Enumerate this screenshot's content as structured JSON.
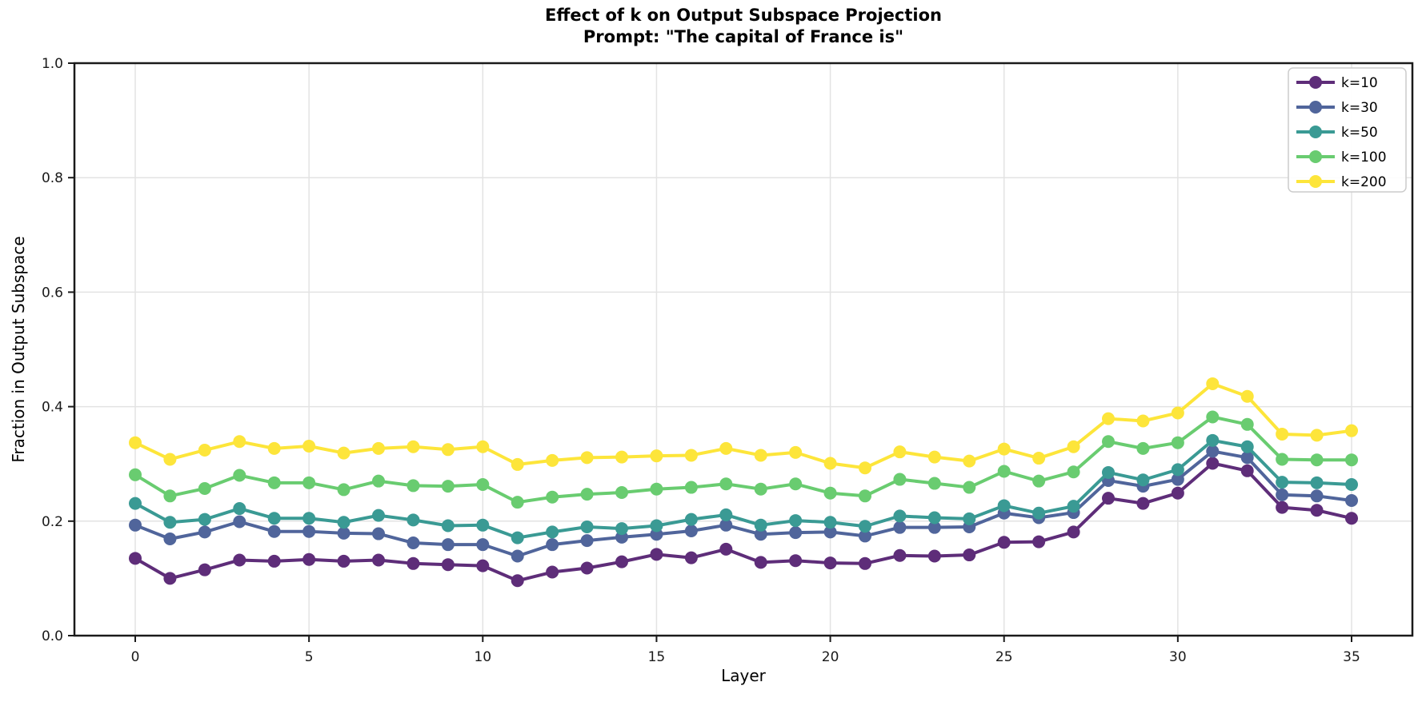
{
  "chart_data": {
    "type": "line",
    "title_line1": "Effect of k on Output Subspace Projection",
    "title_line2": "Prompt: \"The capital of France is\"",
    "xlabel": "Layer",
    "ylabel": "Fraction in Output Subspace",
    "xlim": [
      -1.75,
      36.75
    ],
    "ylim": [
      0.0,
      1.0
    ],
    "grid": true,
    "legend_position": "upper right",
    "xticks": [
      0,
      5,
      10,
      15,
      20,
      25,
      30,
      35
    ],
    "xtick_labels": [
      "0",
      "5",
      "10",
      "15",
      "20",
      "25",
      "30",
      "35"
    ],
    "yticks": [
      0.0,
      0.2,
      0.4,
      0.6,
      0.8,
      1.0
    ],
    "ytick_labels": [
      "0.0",
      "0.2",
      "0.4",
      "0.6",
      "0.8",
      "1.0"
    ],
    "x": [
      0,
      1,
      2,
      3,
      4,
      5,
      6,
      7,
      8,
      9,
      10,
      11,
      12,
      13,
      14,
      15,
      16,
      17,
      18,
      19,
      20,
      21,
      22,
      23,
      24,
      25,
      26,
      27,
      28,
      29,
      30,
      31,
      32,
      33,
      34,
      35
    ],
    "series": [
      {
        "name": "k=10",
        "color": "#5e2d79",
        "values": [
          0.135,
          0.1,
          0.115,
          0.132,
          0.13,
          0.133,
          0.13,
          0.132,
          0.126,
          0.124,
          0.122,
          0.096,
          0.111,
          0.118,
          0.129,
          0.142,
          0.136,
          0.151,
          0.128,
          0.131,
          0.127,
          0.126,
          0.14,
          0.139,
          0.141,
          0.163,
          0.164,
          0.181,
          0.24,
          0.231,
          0.249,
          0.301,
          0.288,
          0.224,
          0.219,
          0.205
        ]
      },
      {
        "name": "k=30",
        "color": "#50659b",
        "values": [
          0.193,
          0.169,
          0.181,
          0.199,
          0.182,
          0.182,
          0.179,
          0.178,
          0.162,
          0.159,
          0.159,
          0.139,
          0.159,
          0.166,
          0.172,
          0.177,
          0.183,
          0.193,
          0.177,
          0.18,
          0.181,
          0.174,
          0.189,
          0.189,
          0.19,
          0.214,
          0.206,
          0.215,
          0.271,
          0.261,
          0.273,
          0.322,
          0.311,
          0.246,
          0.244,
          0.236
        ]
      },
      {
        "name": "k=50",
        "color": "#3a9a94",
        "values": [
          0.231,
          0.198,
          0.203,
          0.222,
          0.205,
          0.205,
          0.198,
          0.21,
          0.202,
          0.192,
          0.193,
          0.171,
          0.181,
          0.19,
          0.187,
          0.192,
          0.203,
          0.211,
          0.193,
          0.201,
          0.198,
          0.191,
          0.209,
          0.206,
          0.204,
          0.227,
          0.214,
          0.226,
          0.285,
          0.272,
          0.29,
          0.341,
          0.33,
          0.268,
          0.267,
          0.264
        ]
      },
      {
        "name": "k=100",
        "color": "#69cc70",
        "values": [
          0.281,
          0.244,
          0.257,
          0.28,
          0.267,
          0.267,
          0.255,
          0.27,
          0.262,
          0.261,
          0.264,
          0.233,
          0.242,
          0.247,
          0.25,
          0.256,
          0.259,
          0.265,
          0.256,
          0.265,
          0.249,
          0.244,
          0.273,
          0.266,
          0.259,
          0.287,
          0.27,
          0.286,
          0.339,
          0.327,
          0.337,
          0.382,
          0.369,
          0.308,
          0.307,
          0.307
        ]
      },
      {
        "name": "k=200",
        "color": "#fde53a",
        "values": [
          0.337,
          0.308,
          0.324,
          0.339,
          0.327,
          0.331,
          0.319,
          0.327,
          0.33,
          0.325,
          0.33,
          0.299,
          0.306,
          0.311,
          0.312,
          0.314,
          0.315,
          0.327,
          0.315,
          0.32,
          0.301,
          0.293,
          0.321,
          0.312,
          0.305,
          0.326,
          0.31,
          0.33,
          0.379,
          0.375,
          0.389,
          0.44,
          0.418,
          0.352,
          0.35,
          0.358
        ]
      }
    ],
    "style": {
      "spine_color": "#1a1a1a",
      "grid_color": "#e3e3e3",
      "tick_label_color": "#1a1a1a",
      "legend_border_color": "#cccccc",
      "background": "#ffffff"
    }
  }
}
